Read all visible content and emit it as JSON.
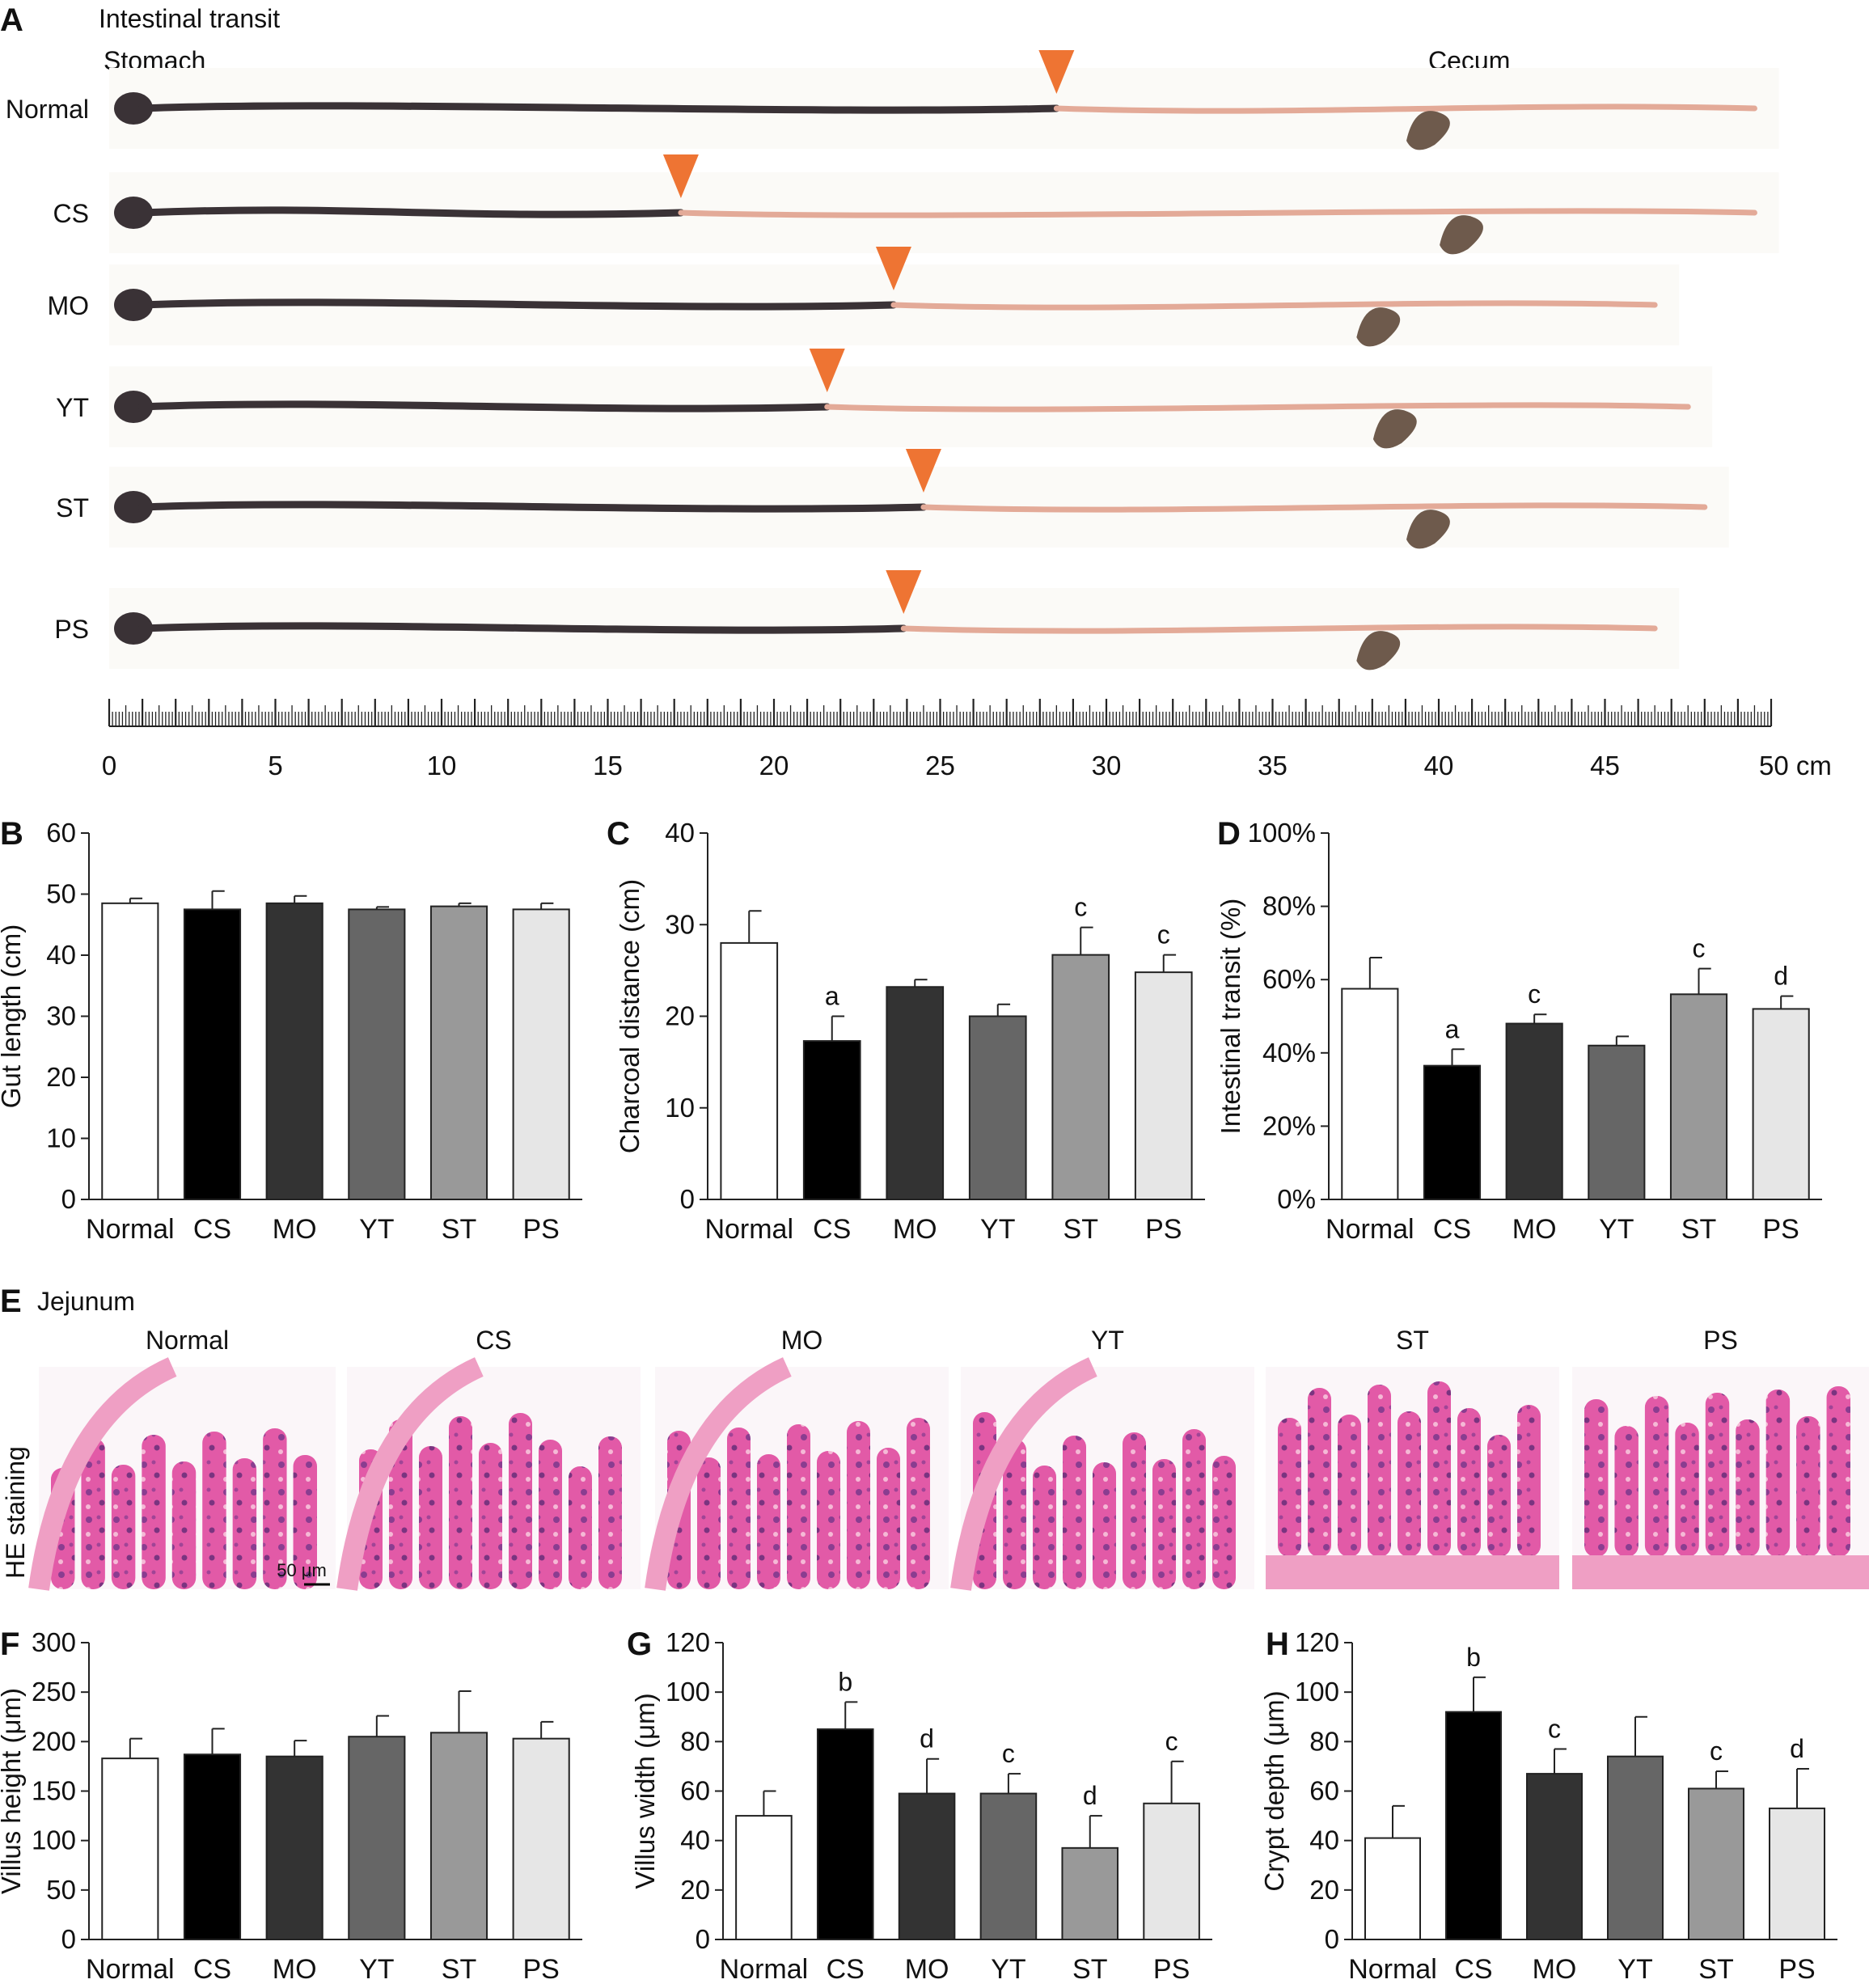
{
  "panel_a": {
    "letter": "A",
    "title": "Intestinal transit",
    "stomach_label": "Stomach",
    "cecum_label": "Cecum",
    "rows": [
      {
        "label": "Normal",
        "gut_length": 49.5,
        "charcoal": 28.5,
        "cecum": 40.0
      },
      {
        "label": "CS",
        "gut_length": 49.5,
        "charcoal": 17.2,
        "cecum": 41.0
      },
      {
        "label": "MO",
        "gut_length": 46.5,
        "charcoal": 23.6,
        "cecum": 38.5
      },
      {
        "label": "YT",
        "gut_length": 47.5,
        "charcoal": 21.6,
        "cecum": 39.0
      },
      {
        "label": "ST",
        "gut_length": 48.0,
        "charcoal": 24.5,
        "cecum": 40.0
      },
      {
        "label": "PS",
        "gut_length": 46.5,
        "charcoal": 23.9,
        "cecum": 38.5
      }
    ],
    "ruler": {
      "min": 0,
      "max": 50,
      "major_ticks": [
        "0",
        "5",
        "10",
        "15",
        "20",
        "25",
        "30",
        "35",
        "40",
        "45",
        "50 cm"
      ]
    }
  },
  "panel_e": {
    "letter": "E",
    "title": "Jejunum",
    "side_label": "HE staining",
    "scale_bar": "50 μm",
    "columns": [
      "Normal",
      "CS",
      "MO",
      "YT",
      "ST",
      "PS"
    ]
  },
  "colors": {
    "Normal": "#ffffff",
    "CS": "#000000",
    "MO": "#333333",
    "YT": "#666666",
    "ST": "#999999",
    "PS": "#e6e6e6",
    "arrow": "#ee7433",
    "gut_dark": "#3a3236",
    "gut_pink": "#e3aa98"
  },
  "chart_data": [
    {
      "id": "B",
      "type": "bar",
      "letter": "B",
      "ylabel": "Gut length (cm)",
      "ylim": [
        0,
        60
      ],
      "yticks": [
        "0",
        "10",
        "20",
        "30",
        "40",
        "50",
        "60"
      ],
      "categories": [
        "Normal",
        "CS",
        "MO",
        "YT",
        "ST",
        "PS"
      ],
      "values": [
        48.5,
        47.5,
        48.5,
        47.5,
        48.0,
        47.5
      ],
      "errors": [
        0.8,
        3.0,
        1.2,
        0.4,
        0.5,
        1.0
      ],
      "sig": [
        "",
        "",
        "",
        "",
        "",
        ""
      ]
    },
    {
      "id": "C",
      "type": "bar",
      "letter": "C",
      "ylabel": "Charcoal distance (cm)",
      "ylim": [
        0,
        40
      ],
      "yticks": [
        "0",
        "10",
        "20",
        "30",
        "40"
      ],
      "categories": [
        "Normal",
        "CS",
        "MO",
        "YT",
        "ST",
        "PS"
      ],
      "values": [
        28.0,
        17.3,
        23.2,
        20.0,
        26.7,
        24.8
      ],
      "errors": [
        3.5,
        2.7,
        0.8,
        1.3,
        3.0,
        1.9
      ],
      "sig": [
        "",
        "a",
        "",
        "",
        "c",
        "c"
      ]
    },
    {
      "id": "D",
      "type": "bar",
      "letter": "D",
      "ylabel": "Intestinal transit (%)",
      "ylim": [
        0,
        100
      ],
      "yticks": [
        "0%",
        "20%",
        "40%",
        "60%",
        "80%",
        "100%"
      ],
      "categories": [
        "Normal",
        "CS",
        "MO",
        "YT",
        "ST",
        "PS"
      ],
      "values": [
        57.5,
        36.5,
        48.0,
        42.0,
        56.0,
        52.0
      ],
      "errors": [
        8.5,
        4.5,
        2.5,
        2.5,
        7.0,
        3.5
      ],
      "sig": [
        "",
        "a",
        "c",
        "",
        "c",
        "d"
      ]
    },
    {
      "id": "F",
      "type": "bar",
      "letter": "F",
      "ylabel": "Villus height (μm)",
      "ylim": [
        0,
        300
      ],
      "yticks": [
        "0",
        "50",
        "100",
        "150",
        "200",
        "250",
        "300"
      ],
      "categories": [
        "Normal",
        "CS",
        "MO",
        "YT",
        "ST",
        "PS"
      ],
      "values": [
        183,
        187,
        185,
        205,
        209,
        203
      ],
      "errors": [
        20,
        26,
        16,
        21,
        42,
        17
      ],
      "sig": [
        "",
        "",
        "",
        "",
        "",
        ""
      ]
    },
    {
      "id": "G",
      "type": "bar",
      "letter": "G",
      "ylabel": "Villus width (μm)",
      "ylim": [
        0,
        120
      ],
      "yticks": [
        "0",
        "20",
        "40",
        "60",
        "80",
        "100",
        "120"
      ],
      "categories": [
        "Normal",
        "CS",
        "MO",
        "YT",
        "ST",
        "PS"
      ],
      "values": [
        50,
        85,
        59,
        59,
        37,
        55
      ],
      "errors": [
        10,
        11,
        14,
        8,
        13,
        17
      ],
      "sig": [
        "",
        "b",
        "d",
        "c",
        "d",
        "c"
      ]
    },
    {
      "id": "H",
      "type": "bar",
      "letter": "H",
      "ylabel": "Crypt depth (μm)",
      "ylim": [
        0,
        120
      ],
      "yticks": [
        "0",
        "20",
        "40",
        "60",
        "80",
        "100",
        "120"
      ],
      "categories": [
        "Normal",
        "CS",
        "MO",
        "YT",
        "ST",
        "PS"
      ],
      "values": [
        41,
        92,
        67,
        74,
        61,
        53
      ],
      "errors": [
        13,
        14,
        10,
        16,
        7,
        16
      ],
      "sig": [
        "",
        "b",
        "c",
        "",
        "c",
        "d"
      ]
    }
  ]
}
